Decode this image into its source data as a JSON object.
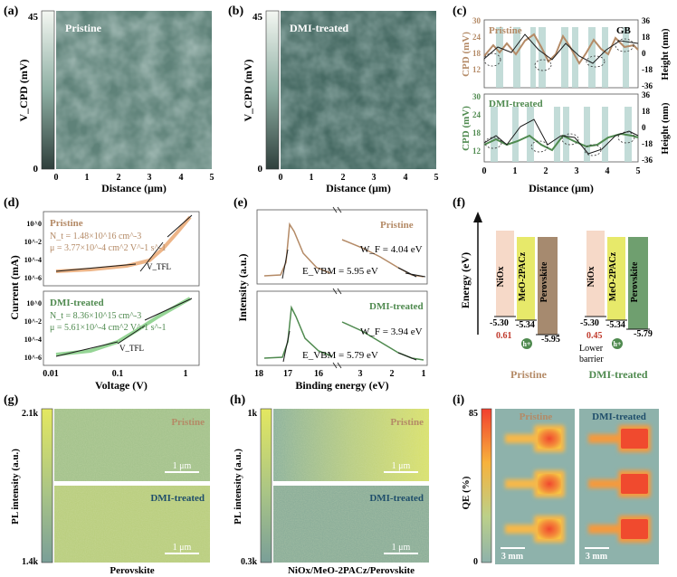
{
  "panel_labels": {
    "a": "(a)",
    "b": "(b)",
    "c": "(c)",
    "d": "(d)",
    "e": "(e)",
    "f": "(f)",
    "g": "(g)",
    "h": "(h)",
    "i": "(i)"
  },
  "colors": {
    "pristine": "#b48a66",
    "dmi": "#4f8a4f",
    "afm_dark": "#2b3f3a",
    "afm_light": "#e6ece6",
    "pl_high": "#d9e36a",
    "pl_low": "#7ea398",
    "qe_high": "#f2573a",
    "gb_band": "#b9d6d2"
  },
  "panel_a": {
    "title": "Pristine",
    "cbar_top": "45",
    "cbar_bottom": "0",
    "ylabel": "V_CPD (mV)",
    "xlabel": "Distance (μm)",
    "ticks": [
      "0",
      "1",
      "2",
      "3",
      "4",
      "5"
    ]
  },
  "panel_b": {
    "title": "DMI-treated",
    "cbar_top": "45",
    "cbar_bottom": "0",
    "ylabel": "V_CPD (mV)",
    "xlabel": "Distance (μm)",
    "ticks": [
      "0",
      "1",
      "2",
      "3",
      "4",
      "5"
    ]
  },
  "panel_c": {
    "top_label": "Pristine",
    "bottom_label": "DMI-treated",
    "gb_label": "GB",
    "ylabel_left": "CPD (mV)",
    "ylabel_right": "Height (nm)",
    "xlabel": "Distance (μm)",
    "left_ticks": [
      "30",
      "24",
      "18",
      "12"
    ],
    "right_ticks": [
      "36",
      "18",
      "0",
      "-18",
      "-36"
    ],
    "x_ticks": [
      "0",
      "1",
      "2",
      "3",
      "4",
      "5"
    ]
  },
  "panel_d": {
    "top_label": "Pristine",
    "top_nt": "N_t = 1.48×10^16 cm^-3",
    "top_mu": "μ = 3.77×10^-4 cm^2 V^-1 s^-1",
    "bottom_label": "DMI-treated",
    "bottom_nt": "N_t = 8.36×10^15 cm^-3",
    "bottom_mu": "μ = 5.61×10^-4 cm^2 V^-1 s^-1",
    "vtfl": "V_TFL",
    "ylabel": "Current (mA)",
    "xlabel": "Voltage (V)",
    "y_ticks": [
      "10^0",
      "10^-2",
      "10^-4",
      "10^-6"
    ],
    "x_ticks": [
      "0.01",
      "0.1",
      "1"
    ]
  },
  "panel_e": {
    "top_label": "Pristine",
    "top_wf": "W_F = 4.04 eV",
    "top_evbm": "E_VBM = 5.95 eV",
    "bottom_label": "DMI-treated",
    "bottom_wf": "W_F = 3.94 eV",
    "bottom_evbm": "E_VBM = 5.79 eV",
    "ylabel": "Intensity (a.u.)",
    "xlabel": "Binding energy (eV)",
    "x_ticks": [
      "18",
      "17",
      "16",
      "3",
      "2",
      "1"
    ]
  },
  "panel_f": {
    "ylabel": "Energy (eV)",
    "layers": [
      "NiOx",
      "MeO-2PACz",
      "Perovskite"
    ],
    "pristine": {
      "nio": "-5.30",
      "meo": "-5.34",
      "pero": "-5.95",
      "barrier": "0.61",
      "hole": "h+",
      "caption": "Pristine"
    },
    "dmi": {
      "nio": "-5.30",
      "meo": "-5.34",
      "pero": "-5.79",
      "barrier": "0.45",
      "hole": "h+",
      "lower": "Lower",
      "barrier_word": "barrier",
      "caption": "DMI-treated"
    }
  },
  "panel_g": {
    "cbar_top": "2.1k",
    "cbar_bottom": "1.4k",
    "ylabel": "PL intensity (a.u.)",
    "top_label": "Pristine",
    "bottom_label": "DMI-treated",
    "scale": "1 μm",
    "xlabel": "Perovskite"
  },
  "panel_h": {
    "cbar_top": "1k",
    "cbar_bottom": "0.3k",
    "ylabel": "PL intensity (a.u.)",
    "top_label": "Pristine",
    "bottom_label": "DMI-treated",
    "scale": "1 μm",
    "xlabel": "NiOx/MeO-2PACz/Perovskite"
  },
  "panel_i": {
    "cbar_top": "85",
    "cbar_bottom": "0",
    "ylabel": "QE (%)",
    "left_label": "Pristine",
    "right_label": "DMI-treated",
    "scale": "3 mm"
  }
}
